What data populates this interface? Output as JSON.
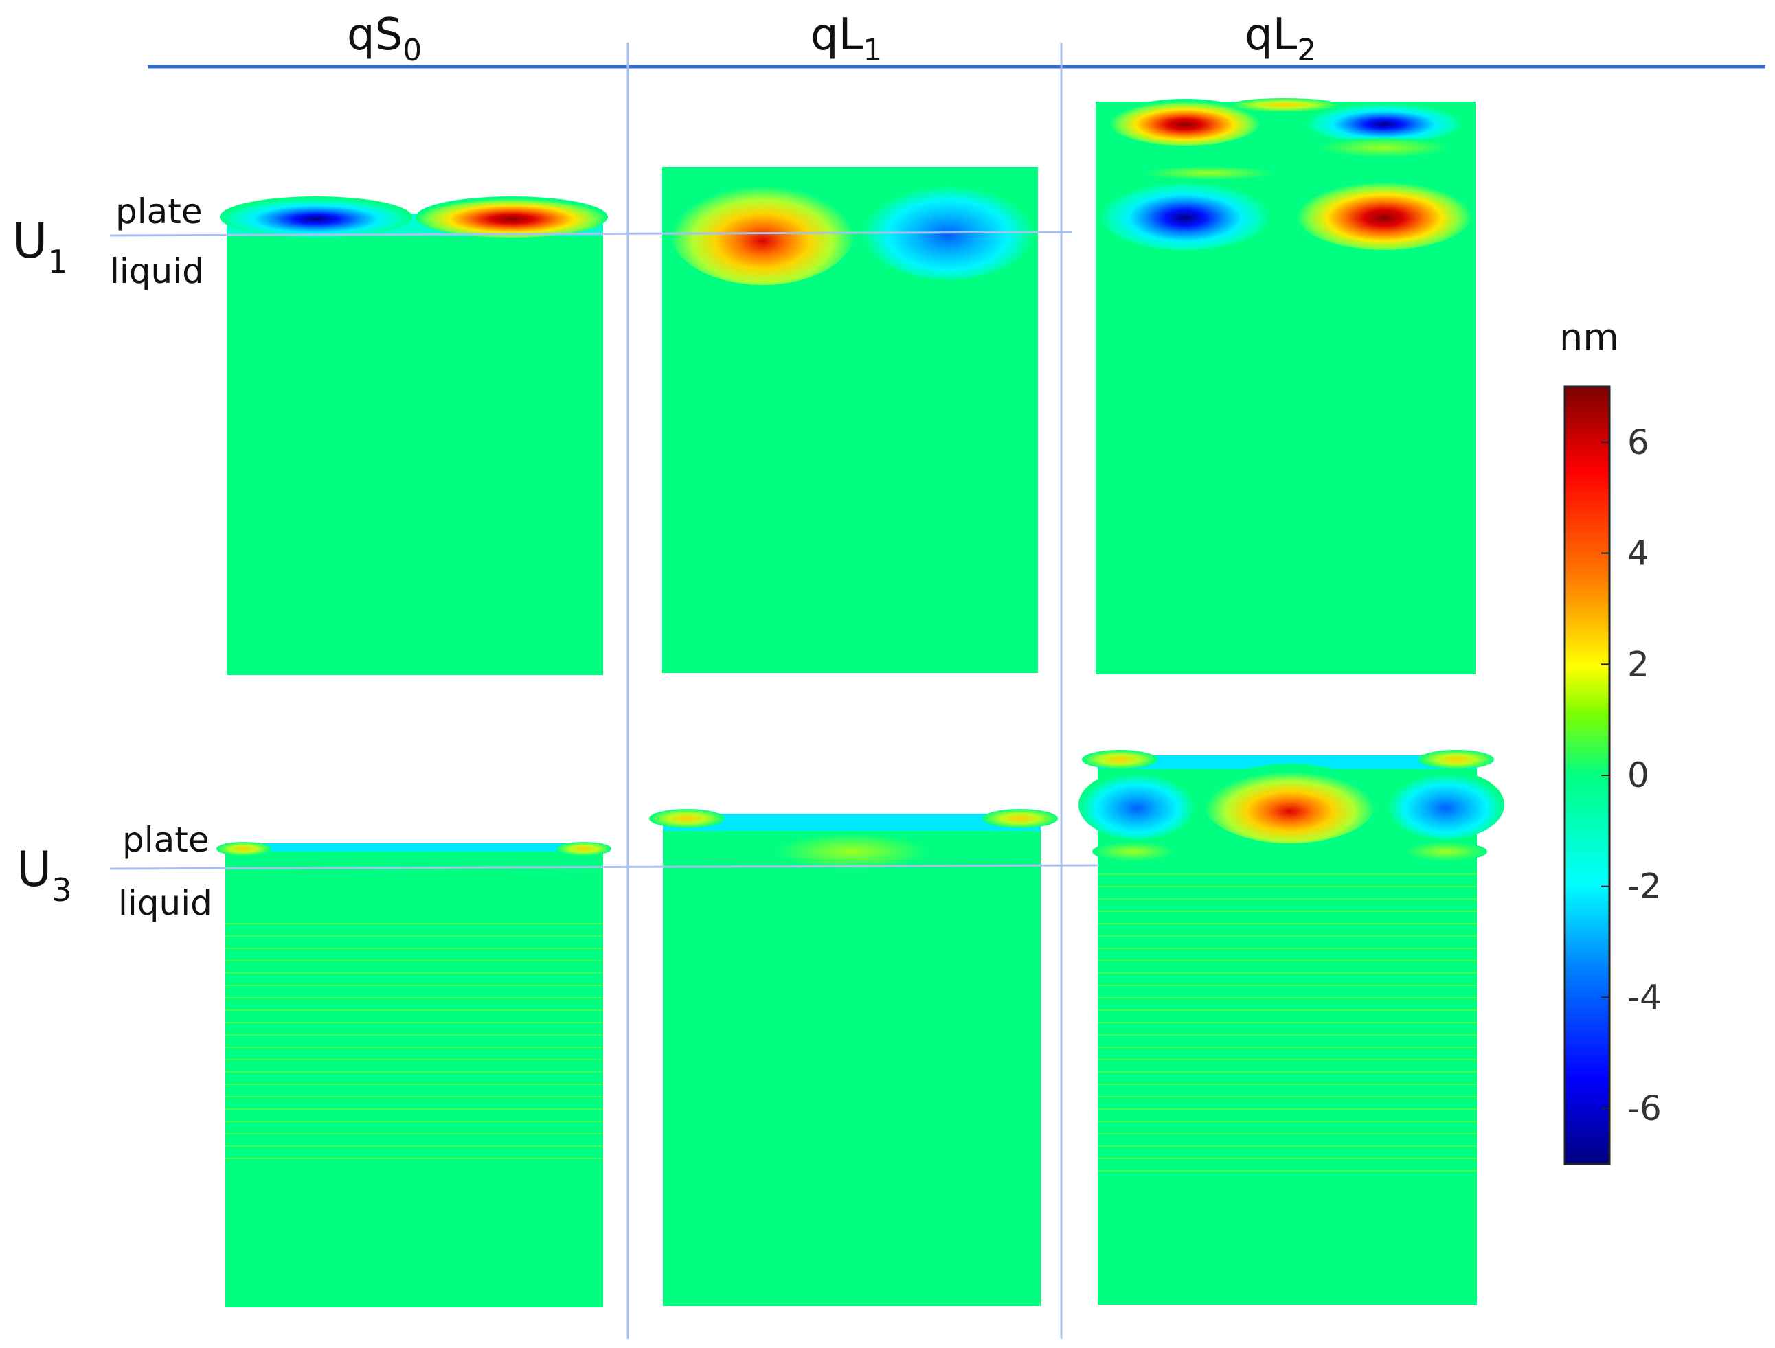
{
  "columns": [
    {
      "id": "qs0",
      "base": "qS",
      "sub": "0"
    },
    {
      "id": "ql1",
      "base": "qL",
      "sub": "1"
    },
    {
      "id": "ql2",
      "base": "qL",
      "sub": "2"
    }
  ],
  "rows": [
    {
      "id": "u1",
      "base": "U",
      "sub": "1",
      "top_label": "plate",
      "bottom_label": "liquid"
    },
    {
      "id": "u3",
      "base": "U",
      "sub": "3",
      "top_label": "plate",
      "bottom_label": "liquid"
    }
  ],
  "colorbar": {
    "unit": "nm",
    "min": -7,
    "max": 7,
    "ticks": [
      6,
      4,
      2,
      0,
      -2,
      -4,
      -6
    ],
    "tick_labels": [
      "6",
      "4",
      "2",
      "0",
      "-2",
      "-4",
      "-6"
    ],
    "colormap": "jet",
    "stops": [
      "#00007f",
      "#0000ff",
      "#007fff",
      "#00ffff",
      "#00ff80",
      "#7fff00",
      "#ffff00",
      "#ff7f00",
      "#ff0000",
      "#7f0000"
    ]
  },
  "colors": {
    "divider": "#2f6fd1",
    "grid": "#a8c0ee",
    "field": "#00ff80"
  },
  "panels": [
    {
      "row": "u1",
      "col": "qs0",
      "plate_mode": "antisymmetric, lobes -7 / +7 nm",
      "liquid": "uniform 0"
    },
    {
      "row": "u1",
      "col": "ql1",
      "plate_mode": "lobes +5 / -3 nm",
      "liquid": "uniform 0"
    },
    {
      "row": "u1",
      "col": "ql2",
      "plate_mode": "two layers, lobes -6 / +6 nm",
      "liquid": "uniform 0"
    },
    {
      "row": "u3",
      "col": "qs0",
      "plate_mode": "weak, edges +2 nm",
      "liquid": "striated near 0"
    },
    {
      "row": "u3",
      "col": "ql1",
      "plate_mode": "weak, edges +2 nm",
      "liquid": "uniform 0"
    },
    {
      "row": "u3",
      "col": "ql2",
      "plate_mode": "lobes -3 / +4 / -3 nm",
      "liquid": "striated near 0"
    }
  ]
}
